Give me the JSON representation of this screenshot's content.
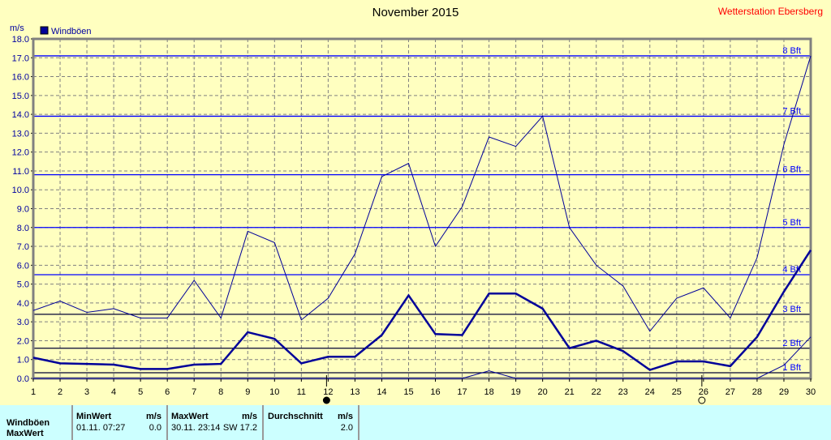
{
  "chart_data": {
    "type": "line",
    "title": "November 2015",
    "station": "Wetterstation Ebersberg",
    "ylabel": "m/s",
    "legend": "Windböen",
    "legend_color": "#000099",
    "ylim": [
      0,
      18
    ],
    "yticks": [
      "0.0",
      "1.0",
      "2.0",
      "3.0",
      "4.0",
      "5.0",
      "6.0",
      "7.0",
      "8.0",
      "9.0",
      "10.0",
      "11.0",
      "12.0",
      "13.0",
      "14.0",
      "15.0",
      "16.0",
      "17.0",
      "18.0"
    ],
    "x": [
      1,
      2,
      3,
      4,
      5,
      6,
      7,
      8,
      9,
      10,
      11,
      12,
      13,
      14,
      15,
      16,
      17,
      18,
      19,
      20,
      21,
      22,
      23,
      24,
      25,
      26,
      27,
      28,
      29,
      30
    ],
    "series": [
      {
        "name": "max",
        "values": [
          3.6,
          4.1,
          3.5,
          3.7,
          3.2,
          3.2,
          5.2,
          3.2,
          7.8,
          7.2,
          3.1,
          4.25,
          6.6,
          10.7,
          11.4,
          7.0,
          9.1,
          12.8,
          12.3,
          13.9,
          8.0,
          6.0,
          4.9,
          2.5,
          4.25,
          4.8,
          3.2,
          6.4,
          12.4,
          17.1
        ]
      },
      {
        "name": "avg",
        "values": [
          1.1,
          0.8,
          0.77,
          0.73,
          0.5,
          0.5,
          0.73,
          0.77,
          2.45,
          2.1,
          0.8,
          1.15,
          1.15,
          2.3,
          4.4,
          2.35,
          2.3,
          4.5,
          4.5,
          3.7,
          1.6,
          2.0,
          1.45,
          0.45,
          0.9,
          0.9,
          0.65,
          2.2,
          4.6,
          6.8
        ]
      },
      {
        "name": "min",
        "values": [
          0,
          0,
          0,
          0,
          0,
          0,
          0,
          0,
          0,
          0,
          0,
          0,
          0,
          0,
          0,
          0,
          0,
          0.4,
          0,
          0,
          0,
          0,
          0,
          0,
          0,
          0,
          0,
          0,
          0.7,
          2.2
        ]
      }
    ],
    "beaufort": [
      {
        "label": "1 Bft",
        "value": 0.3
      },
      {
        "label": "2 Bft",
        "value": 1.6
      },
      {
        "label": "3 Bft",
        "value": 3.4
      },
      {
        "label": "4 Bft",
        "value": 5.5
      },
      {
        "label": "5 Bft",
        "value": 8.0
      },
      {
        "label": "6 Bft",
        "value": 10.8
      },
      {
        "label": "7 Bft",
        "value": 13.9
      },
      {
        "label": "8 Bft",
        "value": 17.1
      }
    ],
    "moon": [
      {
        "day": 12,
        "phase": "new"
      },
      {
        "day": 26,
        "phase": "full"
      }
    ]
  },
  "table": {
    "row_label": "Windböen",
    "row2_label": "MaxWert",
    "min_header": "MinWert",
    "min_unit": "m/s",
    "min_time": "01.11.  07:27",
    "min_value": "0.0",
    "max_header": "MaxWert",
    "max_unit": "m/s",
    "max_time": "30.11.  23:14",
    "max_value": "SW 17.2",
    "avg_header": "Durchschnitt",
    "avg_unit": "m/s",
    "avg_value": "2.0"
  }
}
